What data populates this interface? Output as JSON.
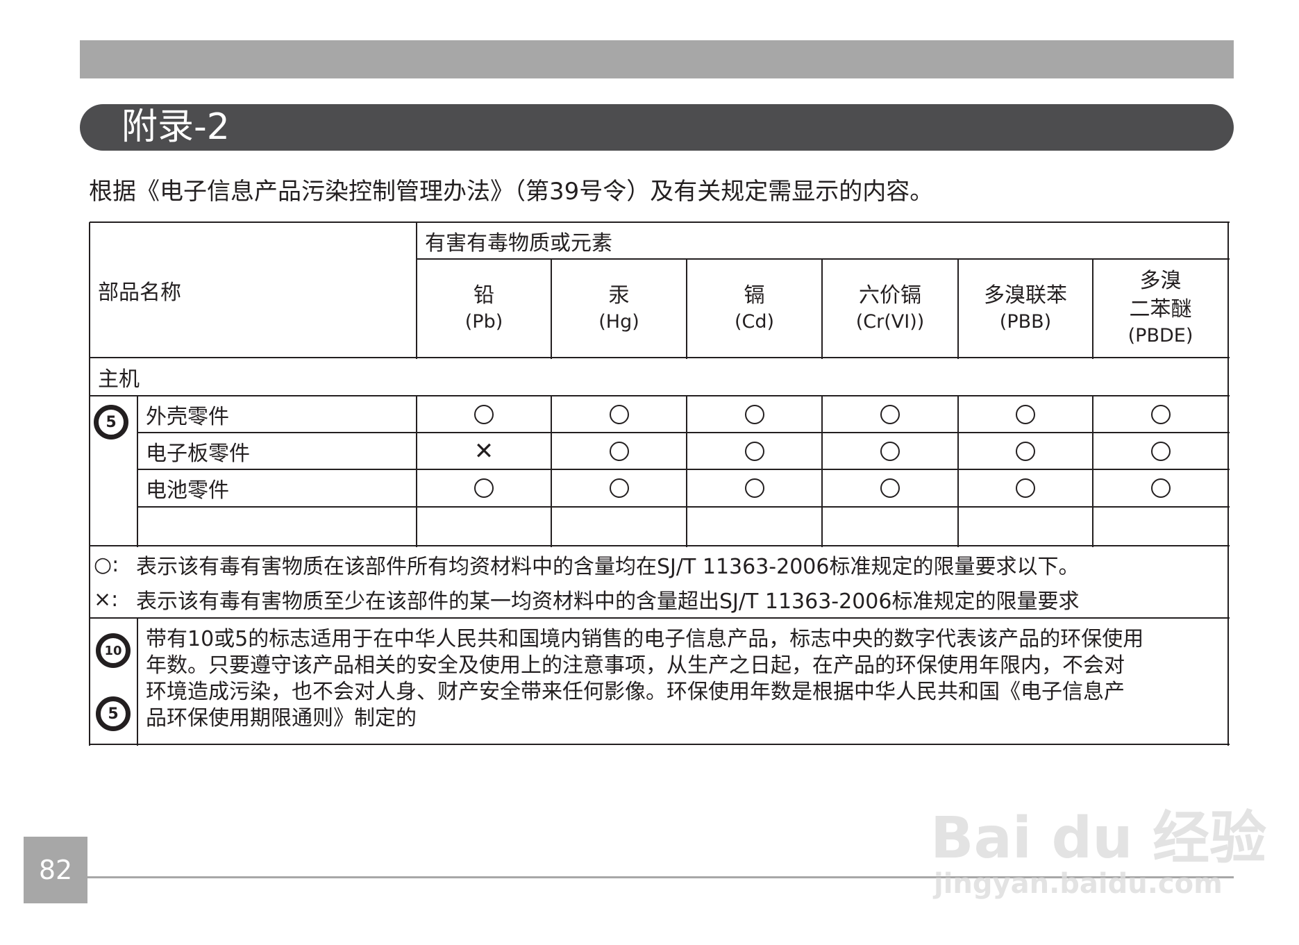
{
  "header": {
    "title": "附录-2"
  },
  "intro": "根据《电子信息产品污染控制管理办法》（第39号令）及有关规定需显示的内容。",
  "table": {
    "part_name_header": "部品名称",
    "substances_header": "有害有毒物质或元素",
    "columns": [
      {
        "name": "铅",
        "symbol": "(Pb)"
      },
      {
        "name": "汞",
        "symbol": "(Hg)"
      },
      {
        "name": "镉",
        "symbol": "(Cd)"
      },
      {
        "name": "六价镉",
        "symbol": "(Cr(VI))"
      },
      {
        "name": "多溴联苯",
        "symbol": "(PBB)"
      },
      {
        "name": "多溴\n二苯醚",
        "symbol": "(PBDE)"
      }
    ],
    "group": "主机",
    "group_badge": "5",
    "rows": [
      {
        "part": "外壳零件",
        "marks": [
          "○",
          "○",
          "○",
          "○",
          "○",
          "○"
        ]
      },
      {
        "part": "电子板零件",
        "marks": [
          "×",
          "○",
          "○",
          "○",
          "○",
          "○"
        ]
      },
      {
        "part": "电池零件",
        "marks": [
          "○",
          "○",
          "○",
          "○",
          "○",
          "○"
        ]
      }
    ]
  },
  "legend": {
    "circle_symbol": "○:",
    "circle_text": "表示该有毒有害物质在该部件所有均资材料中的含量均在SJ/T  11363-2006标准规定的限量要求以下。",
    "cross_symbol": "×:",
    "cross_text": "表示该有毒有害物质至少在该部件的某一均资材料中的含量超出SJ/T  11363-2006标准规定的限量要求"
  },
  "note": {
    "badges": [
      "10",
      "5"
    ],
    "lines": [
      "带有10或5的标志适用于在中华人民共和国境内销售的电子信息产品，标志中央的数字代表该产品的环保使用",
      "年数。只要遵守该产品相关的安全及使用上的注意事项，从生产之日起，在产品的环保使用年限内，不会对",
      "环境造成污染，也不会对人身、财产安全带来任何影像。环保使用年数是根据中华人民共和国《电子信息产",
      "品环保使用期限通则》制定的"
    ]
  },
  "page_number": "82",
  "watermark": {
    "logo": "Bai du 经验",
    "url": "jingyan.baidu.com"
  }
}
